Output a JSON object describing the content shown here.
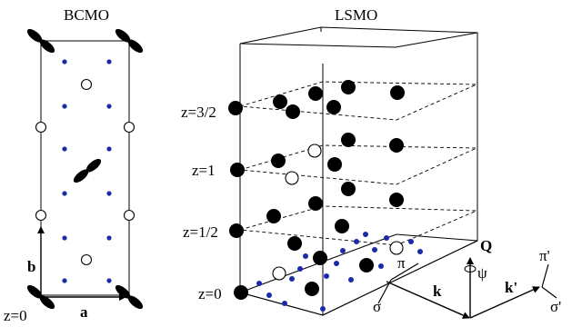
{
  "panels": {
    "left_title": "BCMO",
    "right_title": "LSMO"
  },
  "left_axes": {
    "a_label": "a",
    "b_label": "b",
    "z_label": "z=0"
  },
  "right_layers": {
    "z_3_2": "z=3/2",
    "z_1": "z=1",
    "z_1_2": "z=1/2",
    "z_0": "z=0"
  },
  "scattering": {
    "pi": "π",
    "sigma": "σ",
    "k": "k",
    "Q": "Q",
    "psi": "ψ",
    "k_prime": "k'",
    "pi_prime": "π'",
    "sigma_prime": "σ'"
  },
  "colors": {
    "black_atom": "#000000",
    "blue_atom": "#1a2aa8",
    "white_atom": "#ffffff"
  }
}
